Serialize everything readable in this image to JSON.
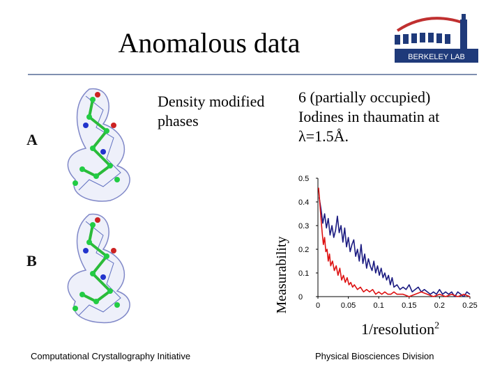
{
  "slide": {
    "title": "Anomalous data",
    "label_modified": [
      "Density modified",
      "phases"
    ],
    "label_iodines": [
      "6 (partially occupied)",
      "Iodines in thaumatin at",
      "λ=1.5Å."
    ],
    "panel_a": "A",
    "panel_b": "B",
    "footer_left": "Computational Crystallography Initiative",
    "footer_right": "Physical Biosciences Division",
    "logo_text": "BERKELEY LAB"
  },
  "colors": {
    "series_blue": "#1a1a80",
    "series_red": "#dd1111",
    "rule": "#7f8fb0"
  },
  "chart_data": {
    "type": "line",
    "xlabel": "1/resolution",
    "xlabel_superscript": "2",
    "ylabel": "Measurability",
    "xlim": [
      0,
      0.25
    ],
    "ylim": [
      0,
      0.5
    ],
    "x_ticks": [
      "0",
      "0.05",
      "0.1",
      "0.15",
      "0.2",
      "0.25"
    ],
    "y_ticks": [
      "0",
      "0.1",
      "0.2",
      "0.3",
      "0.4",
      "0.5"
    ],
    "series": [
      {
        "color": "#1a1a80",
        "x": [
          0.002,
          0.005,
          0.008,
          0.011,
          0.014,
          0.017,
          0.02,
          0.023,
          0.026,
          0.029,
          0.032,
          0.035,
          0.038,
          0.041,
          0.044,
          0.047,
          0.05,
          0.053,
          0.056,
          0.059,
          0.062,
          0.065,
          0.068,
          0.071,
          0.074,
          0.077,
          0.08,
          0.083,
          0.086,
          0.089,
          0.092,
          0.095,
          0.098,
          0.101,
          0.104,
          0.107,
          0.11,
          0.113,
          0.116,
          0.119,
          0.122,
          0.125,
          0.13,
          0.135,
          0.14,
          0.145,
          0.15,
          0.155,
          0.16,
          0.165,
          0.17,
          0.175,
          0.18,
          0.185,
          0.19,
          0.195,
          0.2,
          0.205,
          0.21,
          0.215,
          0.22,
          0.225,
          0.23,
          0.235,
          0.24,
          0.245,
          0.25
        ],
        "y": [
          0.42,
          0.37,
          0.31,
          0.35,
          0.29,
          0.33,
          0.26,
          0.3,
          0.25,
          0.28,
          0.34,
          0.27,
          0.3,
          0.23,
          0.29,
          0.21,
          0.25,
          0.19,
          0.22,
          0.24,
          0.17,
          0.2,
          0.15,
          0.22,
          0.14,
          0.18,
          0.12,
          0.16,
          0.13,
          0.11,
          0.15,
          0.1,
          0.13,
          0.09,
          0.12,
          0.08,
          0.1,
          0.07,
          0.09,
          0.05,
          0.08,
          0.04,
          0.05,
          0.03,
          0.04,
          0.03,
          0.05,
          0.02,
          0.03,
          0.04,
          0.02,
          0.03,
          0.02,
          0.01,
          0.02,
          0.01,
          0.03,
          0.01,
          0.02,
          0.01,
          0.02,
          0.0,
          0.02,
          0.01,
          0.0,
          0.02,
          0.01
        ]
      },
      {
        "color": "#dd1111",
        "x": [
          0.001,
          0.003,
          0.005,
          0.007,
          0.009,
          0.011,
          0.013,
          0.015,
          0.017,
          0.019,
          0.021,
          0.024,
          0.027,
          0.03,
          0.033,
          0.036,
          0.039,
          0.042,
          0.045,
          0.048,
          0.051,
          0.054,
          0.057,
          0.06,
          0.065,
          0.07,
          0.075,
          0.08,
          0.085,
          0.09,
          0.095,
          0.1,
          0.105,
          0.11,
          0.115,
          0.12,
          0.125,
          0.13,
          0.14,
          0.15,
          0.16,
          0.17,
          0.18,
          0.19,
          0.2,
          0.21,
          0.22,
          0.23,
          0.24,
          0.25
        ],
        "y": [
          0.46,
          0.4,
          0.33,
          0.27,
          0.22,
          0.25,
          0.19,
          0.2,
          0.15,
          0.18,
          0.13,
          0.15,
          0.11,
          0.13,
          0.09,
          0.12,
          0.07,
          0.09,
          0.06,
          0.08,
          0.05,
          0.06,
          0.04,
          0.05,
          0.03,
          0.04,
          0.02,
          0.03,
          0.02,
          0.03,
          0.01,
          0.02,
          0.01,
          0.02,
          0.01,
          0.01,
          0.02,
          0.01,
          0.01,
          0.0,
          0.01,
          0.02,
          0.01,
          0.0,
          0.01,
          0.0,
          0.01,
          0.0,
          0.01,
          0.0
        ]
      }
    ]
  }
}
